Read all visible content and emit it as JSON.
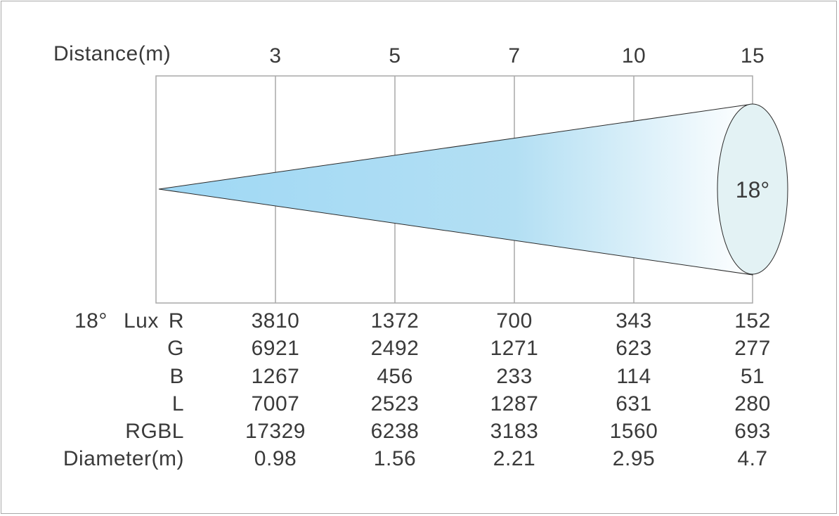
{
  "header": {
    "distance_label": "Distance(m)"
  },
  "distances": [
    "3",
    "5",
    "7",
    "10",
    "15"
  ],
  "beam": {
    "angle_label": "18°",
    "fill_start": "#9fd8f5",
    "fill_end": "#ffffff",
    "ellipse_fill": "#e3f2f4"
  },
  "table": {
    "angle": "18°",
    "lux": "Lux",
    "rows": [
      {
        "label": "R",
        "values": [
          "3810",
          "1372",
          "700",
          "343",
          "152"
        ]
      },
      {
        "label": "G",
        "values": [
          "6921",
          "2492",
          "1271",
          "623",
          "277"
        ]
      },
      {
        "label": "B",
        "values": [
          "1267",
          "456",
          "233",
          "114",
          "51"
        ]
      },
      {
        "label": "L",
        "values": [
          "7007",
          "2523",
          "1287",
          "631",
          "280"
        ]
      },
      {
        "label": "RGBL",
        "values": [
          "17329",
          "6238",
          "3183",
          "1560",
          "693"
        ]
      },
      {
        "label": "Diameter(m)",
        "values": [
          "0.98",
          "1.56",
          "2.21",
          "2.95",
          "4.7"
        ]
      }
    ]
  }
}
